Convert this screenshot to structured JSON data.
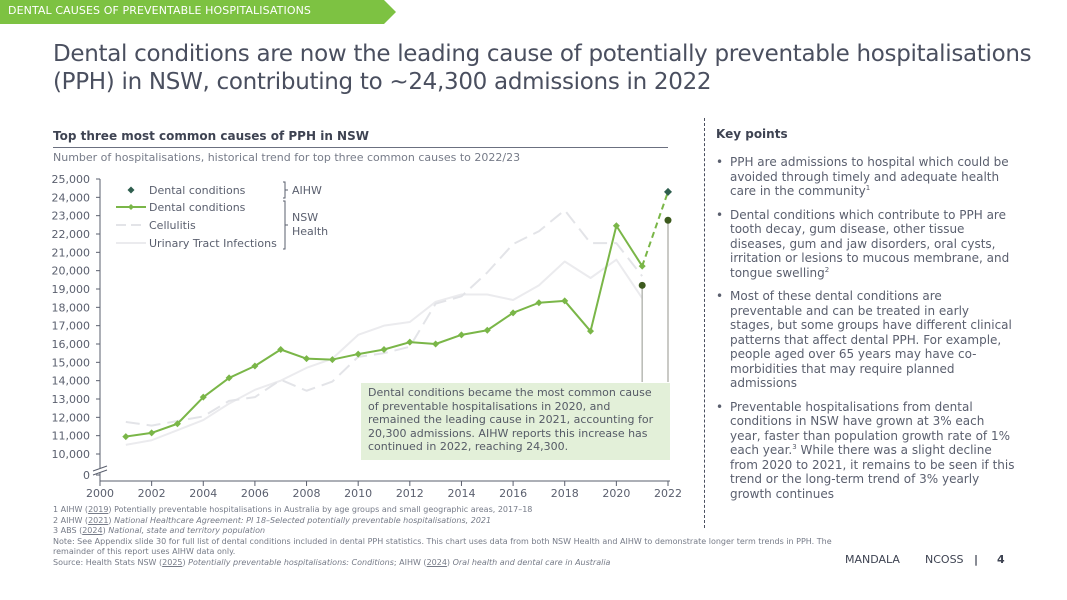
{
  "banner": {
    "label": "DENTAL CAUSES OF PREVENTABLE HOSPITALISATIONS",
    "color": "#7dc242"
  },
  "page_title": "Dental conditions are now the leading cause of potentially preventable hospitalisations (PPH) in NSW, contributing to ~24,300 admissions in 2022",
  "chart_header": {
    "title": "Top three most common causes of PPH in NSW",
    "subtitle": "Number of hospitalisations, historical trend for top three common causes to 2022/23"
  },
  "annotation": "Dental conditions became the most common cause of preventable hospitalisations in 2020, and remained the leading cause in 2021, accounting for 20,300 admissions. AIHW reports this increase has continued in 2022, reaching 24,300.",
  "chart_data": {
    "type": "line",
    "title": "Top three most common causes of PPH in NSW",
    "subtitle": "Number of hospitalisations, historical trend for top three common causes to 2022/23",
    "xlabel": "",
    "ylabel": "",
    "xlim": [
      2000,
      2022
    ],
    "ylim": [
      10000,
      25000
    ],
    "y_axis_break": true,
    "y_ticks": [
      0,
      10000,
      11000,
      12000,
      13000,
      14000,
      15000,
      16000,
      17000,
      18000,
      19000,
      20000,
      21000,
      22000,
      23000,
      24000,
      25000
    ],
    "y_tick_labels": [
      "0",
      "10,000",
      "11,000",
      "12,000",
      "13,000",
      "14,000",
      "15,000",
      "16,000",
      "17,000",
      "18,000",
      "19,000",
      "20,000",
      "21,000",
      "22,000",
      "23,000",
      "24,000",
      "25,000"
    ],
    "x_ticks": [
      2000,
      2002,
      2004,
      2006,
      2008,
      2010,
      2012,
      2014,
      2016,
      2018,
      2020,
      2022
    ],
    "x_tick_labels": [
      "2000",
      "2002",
      "2004",
      "2006",
      "2008",
      "2010",
      "2012",
      "2014",
      "2016",
      "2018",
      "2020",
      "2022"
    ],
    "grid": false,
    "legend_position": "top-left",
    "legend": [
      {
        "label": "Dental conditions",
        "series": "dental_aihw",
        "group": "AIHW"
      },
      {
        "label": "Dental conditions",
        "series": "dental_nsw",
        "group": "NSW Health"
      },
      {
        "label": "Cellulitis",
        "series": "cellulitis",
        "group": "NSW Health"
      },
      {
        "label": "Urinary Tract Infections",
        "series": "uti",
        "group": "NSW Health"
      }
    ],
    "legend_groups": [
      {
        "label": "AIHW"
      },
      {
        "label": "NSW Health"
      }
    ],
    "series": [
      {
        "id": "dental_nsw",
        "name": "Dental conditions (NSW Health)",
        "color": "#7ab648",
        "style": "solid-markers",
        "x": [
          2001,
          2002,
          2003,
          2004,
          2005,
          2006,
          2007,
          2008,
          2009,
          2010,
          2011,
          2012,
          2013,
          2014,
          2015,
          2016,
          2017,
          2018,
          2019,
          2020,
          2021
        ],
        "values": [
          10950,
          11150,
          11650,
          13100,
          14150,
          14800,
          15700,
          15200,
          15150,
          15450,
          15700,
          16100,
          16000,
          16500,
          16750,
          17700,
          18250,
          18350,
          16700,
          22450,
          20250
        ]
      },
      {
        "id": "dental_projection",
        "name": "Dental conditions (2021–2022 link)",
        "color": "#7ab648",
        "style": "dashed",
        "x": [
          2021,
          2022
        ],
        "values": [
          20250,
          24300
        ]
      },
      {
        "id": "dental_aihw",
        "name": "Dental conditions (AIHW)",
        "color": "#2f5e4e",
        "style": "diamond",
        "x": [
          2022
        ],
        "values": [
          24300
        ]
      },
      {
        "id": "aihw_dots",
        "name": "AIHW reference points",
        "color": "#3d5a1e",
        "style": "dot-drop",
        "x": [
          2021,
          2022
        ],
        "values": [
          19200,
          22750
        ]
      },
      {
        "id": "cellulitis",
        "name": "Cellulitis",
        "color": "#e3e4e8",
        "style": "dashed",
        "x": [
          2001,
          2002,
          2003,
          2004,
          2005,
          2006,
          2007,
          2008,
          2009,
          2010,
          2011,
          2012,
          2013,
          2014,
          2015,
          2016,
          2017,
          2018,
          2019,
          2020,
          2021
        ],
        "values": [
          11750,
          11550,
          11800,
          12050,
          12900,
          13100,
          14050,
          13450,
          13950,
          15300,
          15500,
          15850,
          18200,
          18600,
          19900,
          21450,
          22150,
          23300,
          21500,
          21500,
          19700
        ]
      },
      {
        "id": "uti",
        "name": "Urinary Tract Infections",
        "color": "#ebebee",
        "style": "solid",
        "x": [
          2001,
          2002,
          2003,
          2004,
          2005,
          2006,
          2007,
          2008,
          2009,
          2010,
          2011,
          2012,
          2013,
          2014,
          2015,
          2016,
          2017,
          2018,
          2019,
          2020,
          2021
        ],
        "values": [
          10500,
          10750,
          11300,
          11850,
          12750,
          13500,
          14000,
          14700,
          15200,
          16500,
          17000,
          17200,
          18300,
          18700,
          18700,
          18400,
          19200,
          20500,
          19600,
          20600,
          18500
        ]
      }
    ]
  },
  "key_points": {
    "title": "Key points",
    "items": [
      {
        "text": "PPH are admissions to hospital which could be avoided through timely and adequate health care in the community",
        "sup": "1"
      },
      {
        "text": "Dental conditions which contribute to PPH are tooth decay, gum disease, other tissue diseases, gum and jaw disorders, oral cysts, irritation or lesions to mucous membrane, and tongue swelling",
        "sup": "2"
      },
      {
        "text": "Most of these dental conditions are preventable and can be treated in early stages, but some groups have different clinical patterns that affect dental PPH. For example, people aged over 65 years may have co-morbidities that may require planned admissions",
        "sup": ""
      },
      {
        "text_before": "Preventable hospitalisations from dental conditions in NSW have grown at 3% each year, faster than population growth rate of 1% each year.",
        "sup": "3",
        "text_after": " While there was a slight decline from 2020 to 2021, it remains to be seen if this trend or the long-term trend of 3% yearly growth continues"
      }
    ]
  },
  "footnotes": {
    "f1": {
      "num": "1 AIHW (",
      "year": "2019",
      "rest": ") Potentially preventable hospitalisations in Australia by age groups and small geographic areas, 2017–18"
    },
    "f2": {
      "num": "2 AIHW (",
      "year": "2021",
      "close": ") ",
      "title": "National Healthcare Agreement: PI 18–Selected potentially preventable hospitalisations, 2021"
    },
    "f3": {
      "num": "3 ABS (",
      "year": "2024",
      "close": ") ",
      "title": "National, state and territory population"
    },
    "note": "Note: See Appendix slide 30 for full list of dental conditions included in dental PPH statistics. This chart uses data from both NSW Health and AIHW to demonstrate longer term trends in PPH. The remainder of this report uses AIHW data only.",
    "source": {
      "prefix": "Source: Health Stats NSW (",
      "year1": "2025",
      "close1": ") ",
      "title1": "Potentially preventable hospitalisations: Conditions",
      "mid": "; AIHW (",
      "year2": "2024",
      "close2": ") ",
      "title2": "Oral health and dental care in Australia"
    }
  },
  "footer": {
    "mandala": "MANDALA",
    "ncoss": "NCOSS",
    "separator": "|",
    "page": "4"
  }
}
